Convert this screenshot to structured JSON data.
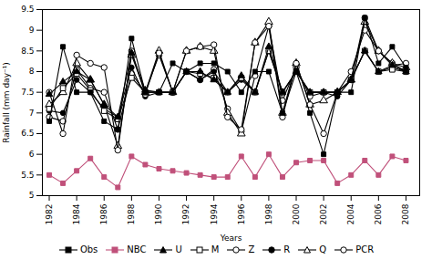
{
  "chart_data": {
    "type": "line",
    "xlabel": "Years",
    "ylabel": "Rainfall (mm day⁻¹)",
    "x": [
      1982,
      1983,
      1984,
      1985,
      1986,
      1987,
      1988,
      1989,
      1990,
      1991,
      1992,
      1993,
      1994,
      1995,
      1996,
      1997,
      1998,
      1999,
      2000,
      2001,
      2002,
      2003,
      2004,
      2005,
      2006,
      2007,
      2008
    ],
    "series": [
      {
        "name": "Obs",
        "color": "black",
        "marker": "square",
        "values": [
          6.8,
          8.6,
          7.5,
          7.5,
          6.8,
          6.6,
          8.8,
          7.5,
          7.5,
          8.2,
          8.0,
          8.2,
          8.2,
          8.0,
          7.5,
          8.0,
          8.0,
          7.0,
          8.0,
          7.0,
          6.0,
          7.5,
          7.5,
          9.3,
          8.2,
          8.6,
          8.1
        ]
      },
      {
        "name": "NBC",
        "color": "#c0507a",
        "marker": "square",
        "values": [
          5.5,
          5.3,
          5.6,
          5.9,
          5.45,
          5.2,
          5.95,
          5.75,
          5.65,
          5.6,
          5.55,
          5.5,
          5.45,
          5.45,
          5.95,
          5.45,
          6.0,
          5.45,
          5.8,
          5.85,
          5.85,
          5.3,
          5.5,
          5.85,
          5.5,
          5.95,
          5.85
        ]
      },
      {
        "name": "U",
        "color": "black",
        "marker": "triangle",
        "values": [
          7.45,
          7.75,
          8.0,
          7.8,
          7.2,
          6.9,
          8.45,
          7.55,
          7.5,
          7.5,
          8.0,
          8.0,
          7.8,
          7.5,
          7.9,
          7.5,
          8.6,
          7.5,
          8.0,
          7.5,
          7.5,
          7.5,
          7.8,
          8.5,
          8.0,
          8.15,
          8.0
        ]
      },
      {
        "name": "M",
        "color": "black",
        "marker": "square-open",
        "values": [
          7.1,
          7.6,
          7.95,
          7.55,
          7.05,
          6.85,
          7.85,
          7.5,
          7.5,
          7.5,
          8.0,
          7.95,
          7.85,
          7.5,
          7.85,
          7.5,
          8.5,
          7.5,
          8.0,
          7.5,
          7.5,
          7.5,
          7.8,
          8.5,
          8.0,
          8.05,
          8.0
        ]
      },
      {
        "name": "Z",
        "color": "black",
        "marker": "circle-open",
        "values": [
          7.5,
          6.5,
          8.4,
          8.2,
          8.1,
          6.1,
          8.5,
          7.45,
          8.45,
          7.5,
          8.5,
          8.6,
          8.65,
          6.9,
          6.6,
          8.7,
          9.1,
          6.9,
          8.2,
          7.2,
          6.5,
          7.5,
          7.8,
          9.3,
          8.5,
          8.15,
          8.2
        ]
      },
      {
        "name": "R",
        "color": "black",
        "marker": "circle",
        "values": [
          7.05,
          7.0,
          7.8,
          7.5,
          7.1,
          6.9,
          8.1,
          7.4,
          7.5,
          7.5,
          8.0,
          7.8,
          8.0,
          7.5,
          7.8,
          7.5,
          8.5,
          7.5,
          8.0,
          7.5,
          7.5,
          7.4,
          7.8,
          8.5,
          8.0,
          8.1,
          8.0
        ]
      },
      {
        "name": "Q",
        "color": "black",
        "marker": "triangle-open",
        "values": [
          7.2,
          7.5,
          8.2,
          7.8,
          7.2,
          6.2,
          8.4,
          7.5,
          8.5,
          7.5,
          8.5,
          8.6,
          8.5,
          7.0,
          6.5,
          8.7,
          9.2,
          7.0,
          8.2,
          7.2,
          7.3,
          7.5,
          7.8,
          9.2,
          8.5,
          8.2,
          8.1
        ]
      },
      {
        "name": "PCR",
        "color": "black",
        "marker": "circle-open",
        "values": [
          6.9,
          6.8,
          8.05,
          7.6,
          7.5,
          6.6,
          7.95,
          7.5,
          8.4,
          7.5,
          8.0,
          7.8,
          8.05,
          7.1,
          6.55,
          7.9,
          9.1,
          7.3,
          8.1,
          7.4,
          7.5,
          7.5,
          8.0,
          9.0,
          8.5,
          8.2,
          8.0
        ]
      }
    ],
    "xlim": [
      1981.5,
      2009
    ],
    "xticks": [
      1982,
      1984,
      1986,
      1988,
      1990,
      1992,
      1994,
      1996,
      1998,
      2000,
      2002,
      2004,
      2006,
      2008
    ],
    "ylim": [
      5,
      9.5
    ],
    "yticks": [
      5,
      5.5,
      6,
      6.5,
      7,
      7.5,
      8,
      8.5,
      9,
      9.5
    ],
    "grid": false,
    "legend": "bottom"
  }
}
